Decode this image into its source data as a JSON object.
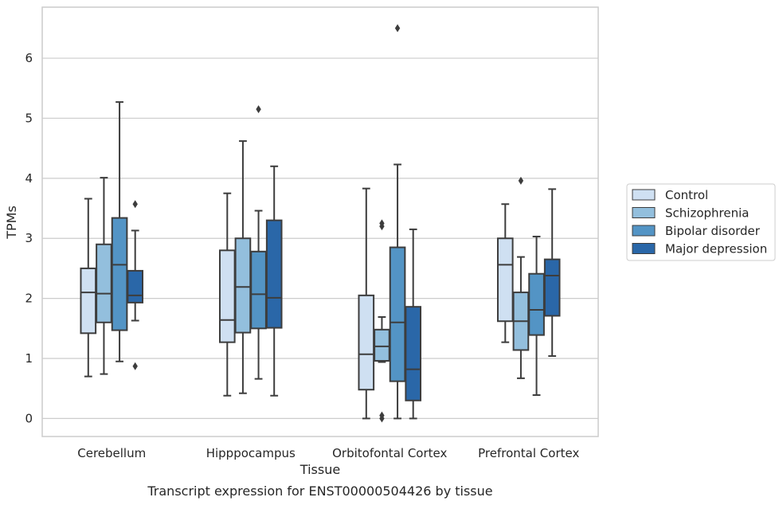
{
  "chart_data": {
    "type": "box",
    "title": "Transcript expression for ENST00000504426 by tissue",
    "xlabel": "Tissue",
    "ylabel": "TPMs",
    "ylim": [
      -0.3,
      6.85
    ],
    "yticks": [
      0,
      1,
      2,
      3,
      4,
      5,
      6
    ],
    "grid": true,
    "legend_position": "right",
    "categories": [
      "Cerebellum",
      "Hipppocampus",
      "Orbitofontal Cortex",
      "Prefrontal Cortex"
    ],
    "series": [
      {
        "name": "Control",
        "color": "#cfe0f2",
        "boxes": [
          {
            "whislo": 0.7,
            "q1": 1.42,
            "med": 2.1,
            "q3": 2.5,
            "whishi": 3.66,
            "fliers": []
          },
          {
            "whislo": 0.38,
            "q1": 1.27,
            "med": 1.64,
            "q3": 2.8,
            "whishi": 3.75,
            "fliers": []
          },
          {
            "whislo": 0.0,
            "q1": 0.48,
            "med": 1.07,
            "q3": 2.05,
            "whishi": 3.83,
            "fliers": []
          },
          {
            "whislo": 1.27,
            "q1": 1.62,
            "med": 2.56,
            "q3": 3.0,
            "whishi": 3.57,
            "fliers": []
          }
        ]
      },
      {
        "name": "Schizophrenia",
        "color": "#93bfdd",
        "boxes": [
          {
            "whislo": 0.74,
            "q1": 1.6,
            "med": 2.08,
            "q3": 2.9,
            "whishi": 4.01,
            "fliers": []
          },
          {
            "whislo": 0.42,
            "q1": 1.43,
            "med": 2.19,
            "q3": 3.0,
            "whishi": 4.62,
            "fliers": []
          },
          {
            "whislo": 0.94,
            "q1": 0.96,
            "med": 1.2,
            "q3": 1.48,
            "whishi": 1.69,
            "fliers": [
              3.2,
              3.25,
              0.0,
              0.05
            ]
          },
          {
            "whislo": 0.67,
            "q1": 1.14,
            "med": 1.62,
            "q3": 2.1,
            "whishi": 2.69,
            "fliers": [
              3.96
            ]
          }
        ]
      },
      {
        "name": "Bipolar disorder",
        "color": "#5394c5",
        "boxes": [
          {
            "whislo": 0.95,
            "q1": 1.47,
            "med": 2.56,
            "q3": 3.34,
            "whishi": 5.27,
            "fliers": []
          },
          {
            "whislo": 0.66,
            "q1": 1.5,
            "med": 2.07,
            "q3": 2.78,
            "whishi": 3.46,
            "fliers": [
              5.15
            ]
          },
          {
            "whislo": 0.0,
            "q1": 0.62,
            "med": 1.6,
            "q3": 2.85,
            "whishi": 4.23,
            "fliers": [
              6.5
            ]
          },
          {
            "whislo": 0.39,
            "q1": 1.39,
            "med": 1.81,
            "q3": 2.41,
            "whishi": 3.03,
            "fliers": []
          }
        ]
      },
      {
        "name": "Major depression",
        "color": "#2a67a8",
        "boxes": [
          {
            "whislo": 1.63,
            "q1": 1.93,
            "med": 2.05,
            "q3": 2.46,
            "whishi": 3.13,
            "fliers": [
              3.57,
              0.87
            ]
          },
          {
            "whislo": 0.38,
            "q1": 1.51,
            "med": 2.01,
            "q3": 3.3,
            "whishi": 4.2,
            "fliers": []
          },
          {
            "whislo": 0.0,
            "q1": 0.3,
            "med": 0.82,
            "q3": 1.86,
            "whishi": 3.15,
            "fliers": []
          },
          {
            "whislo": 1.04,
            "q1": 1.71,
            "med": 2.38,
            "q3": 2.65,
            "whishi": 3.82,
            "fliers": []
          }
        ]
      }
    ]
  }
}
